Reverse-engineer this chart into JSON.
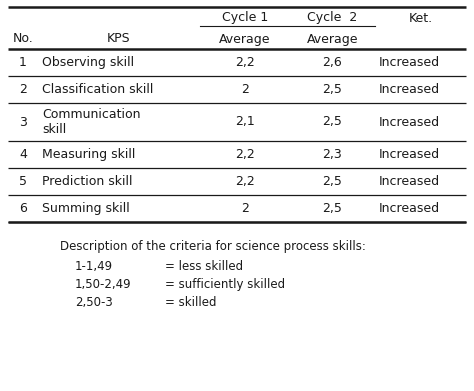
{
  "headers_top": [
    "No.",
    "KPS",
    "Cycle 1",
    "Cycle  2",
    "Ket."
  ],
  "headers_sub": [
    "No.",
    "KPS",
    "Average",
    "Average",
    "Ket."
  ],
  "rows": [
    [
      "1",
      "Observing skill",
      "2,2",
      "2,6",
      "Increased"
    ],
    [
      "2",
      "Classification skill",
      "2",
      "2,5",
      "Increased"
    ],
    [
      "3",
      "Communication\nskill",
      "2,1",
      "2,5",
      "Increased"
    ],
    [
      "4",
      "Measuring skill",
      "2,2",
      "2,3",
      "Increased"
    ],
    [
      "5",
      "Prediction skill",
      "2,2",
      "2,5",
      "Increased"
    ],
    [
      "6",
      "Summing skill",
      "2",
      "2,5",
      "Increased"
    ]
  ],
  "desc_header": "Description of the criteria for science process skills:",
  "desc_items": [
    [
      "1-1,49",
      "= less skilled"
    ],
    [
      "1,50-2,49",
      "= sufficiently skilled"
    ],
    [
      "2,50-3",
      "= skilled"
    ]
  ],
  "bg_color": "#ffffff",
  "text_color": "#1a1a1a",
  "font_size": 9.0,
  "figsize": [
    4.74,
    3.91
  ],
  "dpi": 100
}
